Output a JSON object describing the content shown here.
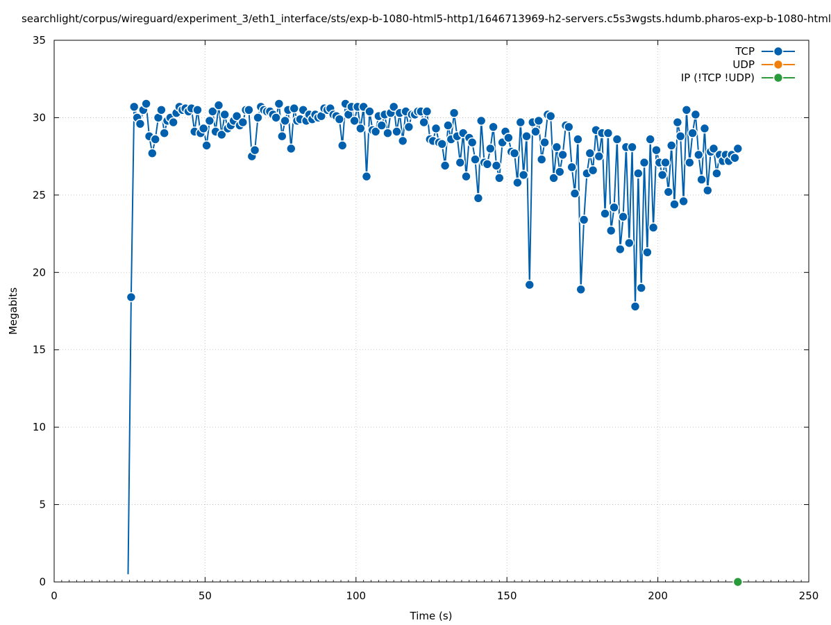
{
  "chart_data": {
    "type": "line",
    "title": "searchlight/corpus/wireguard/experiment_3/eth1_interface/sts/exp-b-1080-html5-http1/1646713969-h2-servers.c5s3wgsts.hdumb.pharos-exp-b-1080-html",
    "xlabel": "Time (s)",
    "ylabel": "Megabits",
    "xlim": [
      0,
      250
    ],
    "ylim": [
      0,
      35
    ],
    "xticks": [
      0,
      50,
      100,
      150,
      200,
      250
    ],
    "yticks": [
      0,
      5,
      10,
      15,
      20,
      25,
      30,
      35
    ],
    "grid": true,
    "legend_position": "top-right",
    "colors": {
      "TCP": "#0060ad",
      "UDP": "#f07f0b",
      "IP (!TCP  !UDP)": "#2a9a3a"
    },
    "series": [
      {
        "name": "TCP",
        "x": [
          24.5,
          25.5,
          26.5,
          27.5,
          28.5,
          29.5,
          30.5,
          31.5,
          32.5,
          33.5,
          34.5,
          35.5,
          36.5,
          37.5,
          38.5,
          39.5,
          40.5,
          41.5,
          42.5,
          43.5,
          44.5,
          45.5,
          46.5,
          47.5,
          48.5,
          49.5,
          50.5,
          51.5,
          52.5,
          53.5,
          54.5,
          55.5,
          56.5,
          57.5,
          58.5,
          59.5,
          60.5,
          61.5,
          62.5,
          63.5,
          64.5,
          65.5,
          66.5,
          67.5,
          68.5,
          69.5,
          70.5,
          71.5,
          72.5,
          73.5,
          74.5,
          75.5,
          76.5,
          77.5,
          78.5,
          79.5,
          80.5,
          81.5,
          82.5,
          83.5,
          84.5,
          85.5,
          86.5,
          87.5,
          88.5,
          89.5,
          90.5,
          91.5,
          92.5,
          93.5,
          94.5,
          95.5,
          96.5,
          97.5,
          98.5,
          99.5,
          100.5,
          101.5,
          102.5,
          103.5,
          104.5,
          105.5,
          106.5,
          107.5,
          108.5,
          109.5,
          110.5,
          111.5,
          112.5,
          113.5,
          114.5,
          115.5,
          116.5,
          117.5,
          118.5,
          119.5,
          120.5,
          121.5,
          122.5,
          123.5,
          124.5,
          125.5,
          126.5,
          127.5,
          128.5,
          129.5,
          130.5,
          131.5,
          132.5,
          133.5,
          134.5,
          135.5,
          136.5,
          137.5,
          138.5,
          139.5,
          140.5,
          141.5,
          142.5,
          143.5,
          144.5,
          145.5,
          146.5,
          147.5,
          148.5,
          149.5,
          150.5,
          151.5,
          152.5,
          153.5,
          154.5,
          155.5,
          156.5,
          157.5,
          158.5,
          159.5,
          160.5,
          161.5,
          162.5,
          163.5,
          164.5,
          165.5,
          166.5,
          167.5,
          168.5,
          169.5,
          170.5,
          171.5,
          172.5,
          173.5,
          174.5,
          175.5,
          176.5,
          177.5,
          178.5,
          179.5,
          180.5,
          181.5,
          182.5,
          183.5,
          184.5,
          185.5,
          186.5,
          187.5,
          188.5,
          189.5,
          190.5,
          191.5,
          192.5,
          193.5,
          194.5,
          195.5,
          196.5,
          197.5,
          198.5,
          199.5,
          200.5,
          201.5,
          202.5,
          203.5,
          204.5,
          205.5,
          206.5,
          207.5,
          208.5,
          209.5,
          210.5,
          211.5,
          212.5,
          213.5,
          214.5,
          215.5,
          216.5,
          217.5,
          218.5,
          219.5,
          220.5,
          221.5,
          222.5,
          223.5,
          224.5,
          225.5,
          226.5
        ],
        "y": [
          0.5,
          18.4,
          30.7,
          30.0,
          29.6,
          30.5,
          30.9,
          28.8,
          27.7,
          28.6,
          30.0,
          30.5,
          29.0,
          29.8,
          30.0,
          29.7,
          30.3,
          30.7,
          30.5,
          30.6,
          30.4,
          30.6,
          29.1,
          30.5,
          29.0,
          29.3,
          28.2,
          29.8,
          30.4,
          29.1,
          30.8,
          28.9,
          30.2,
          29.3,
          29.5,
          29.8,
          30.1,
          29.5,
          29.7,
          30.5,
          30.5,
          27.5,
          27.9,
          30.0,
          30.7,
          30.5,
          30.4,
          30.4,
          30.2,
          30.0,
          30.9,
          28.8,
          29.8,
          30.5,
          28.0,
          30.6,
          29.8,
          29.9,
          30.5,
          29.8,
          30.2,
          29.9,
          30.2,
          30.0,
          30.1,
          30.6,
          30.5,
          30.6,
          30.2,
          30.1,
          29.9,
          28.2,
          30.9,
          30.2,
          30.7,
          29.8,
          30.7,
          29.3,
          30.7,
          26.2,
          30.4,
          29.2,
          29.1,
          30.1,
          29.5,
          30.2,
          29.0,
          30.3,
          30.7,
          29.1,
          30.3,
          28.5,
          30.4,
          29.4,
          30.2,
          30.2,
          30.4,
          30.4,
          29.7,
          30.4,
          28.6,
          28.5,
          29.3,
          28.4,
          28.3,
          26.9,
          29.5,
          28.6,
          30.3,
          28.8,
          27.1,
          29.0,
          26.2,
          28.7,
          28.4,
          27.3,
          24.8,
          29.8,
          27.1,
          27.0,
          28.0,
          29.4,
          26.9,
          26.1,
          28.4,
          29.1,
          28.7,
          27.8,
          27.7,
          25.8,
          29.7,
          26.3,
          28.8,
          19.2,
          29.7,
          29.1,
          29.8,
          27.3,
          28.4,
          30.2,
          30.1,
          26.1,
          28.1,
          26.5,
          27.6,
          29.5,
          29.4,
          26.8,
          25.1,
          28.6,
          18.9,
          23.4,
          26.4,
          27.7,
          26.6,
          29.2,
          27.5,
          29.0,
          23.8,
          29.0,
          22.7,
          24.2,
          28.6,
          21.5,
          23.6,
          28.1,
          21.9,
          28.1,
          17.8,
          26.4,
          19.0,
          27.1,
          21.3,
          28.6,
          22.9,
          27.9,
          27.1,
          26.3,
          27.1,
          25.2,
          28.2,
          24.4,
          29.7,
          28.8,
          24.6,
          30.5,
          27.1,
          29.0,
          30.2,
          27.6,
          26.0,
          29.3,
          25.3,
          27.8,
          28.0,
          26.4,
          27.6,
          27.2,
          27.6,
          27.2,
          27.6,
          27.4,
          28.0
        ]
      },
      {
        "name": "UDP",
        "x": [],
        "y": []
      },
      {
        "name": "IP (!TCP  !UDP)",
        "x": [
          226.5
        ],
        "y": [
          0
        ]
      }
    ]
  }
}
